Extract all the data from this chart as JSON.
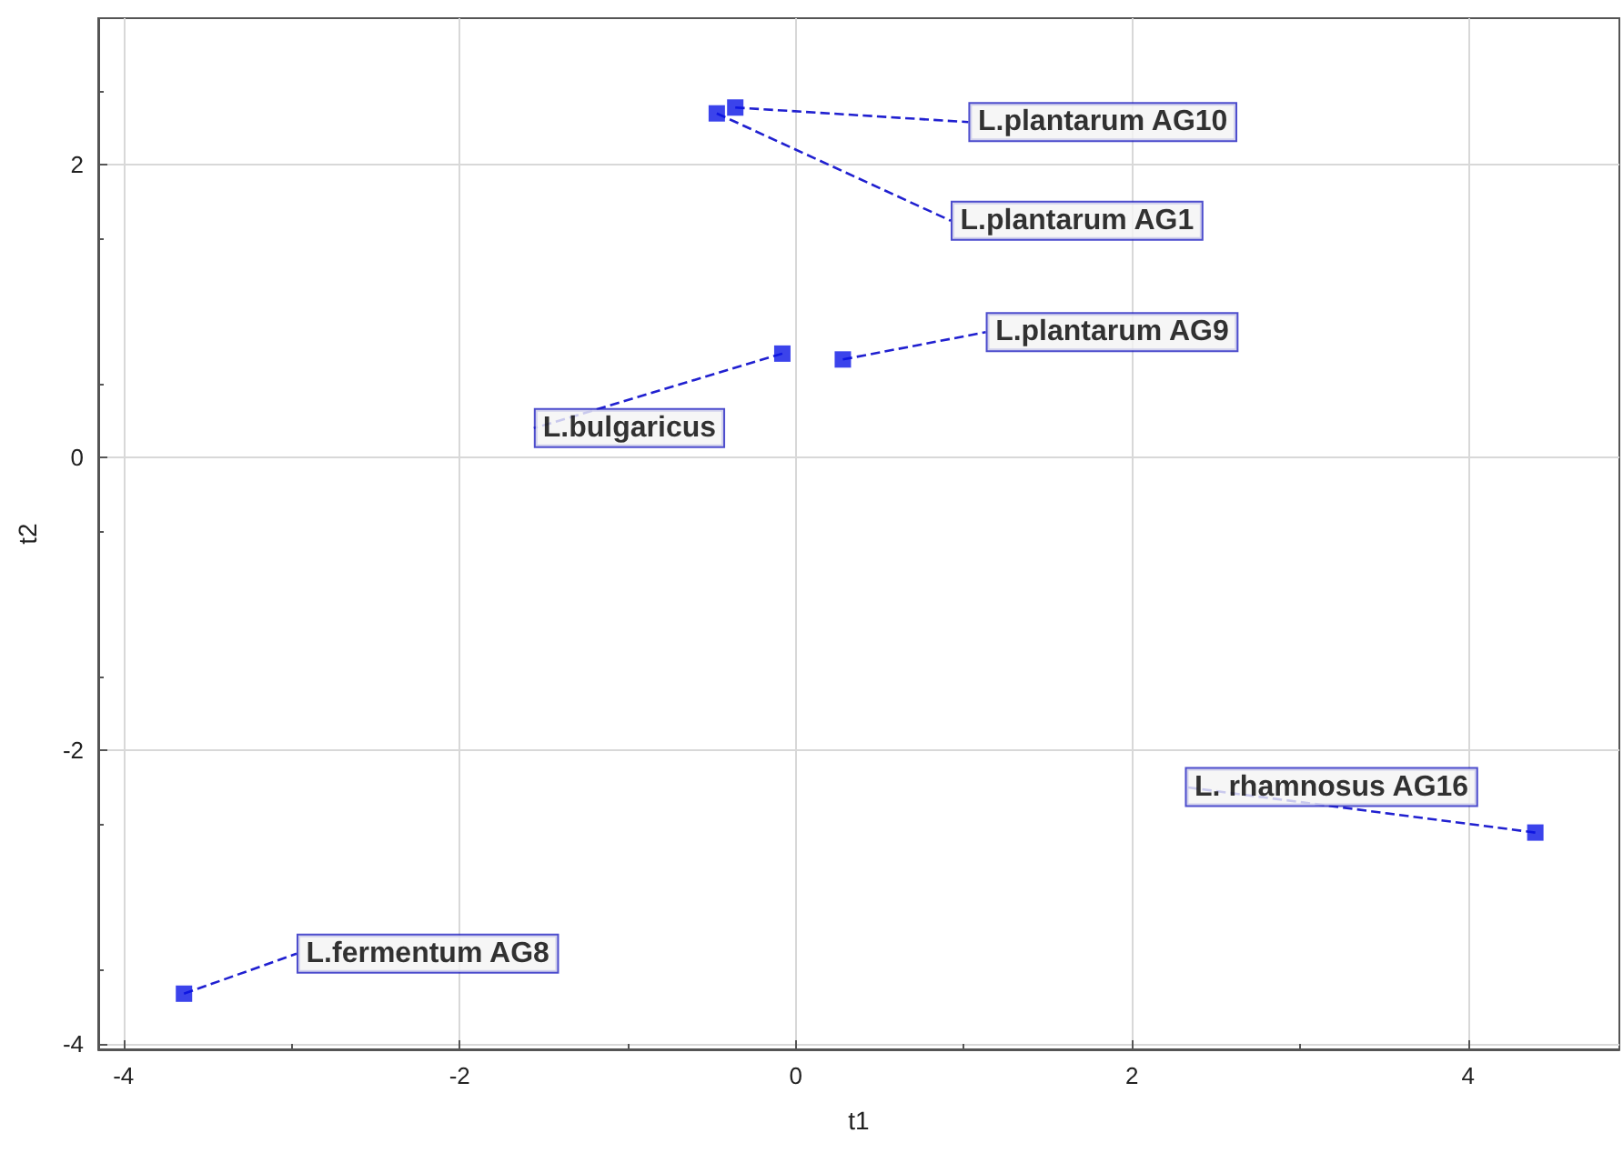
{
  "chart_data": {
    "type": "scatter",
    "xlabel": "t1",
    "ylabel": "t2",
    "x": [
      -0.36,
      -0.47,
      0.28,
      -0.08,
      4.4,
      -3.64
    ],
    "series": [
      {
        "color": "#0a14e6",
        "values": [
          2.39,
          2.35,
          0.67,
          0.71,
          -2.56,
          -3.66
        ]
      }
    ],
    "xlim": [
      -4.15,
      4.9
    ],
    "ylim": [
      -4.04,
      3.0
    ],
    "xticks": [
      -4,
      -2,
      0,
      2,
      4
    ],
    "yticks": [
      -4,
      -2,
      0,
      2
    ],
    "grid": true,
    "marker": "square",
    "annotations": [
      {
        "text": "L.plantarum AG10",
        "x": -0.36,
        "y": 2.39
      },
      {
        "text": "L.plantarum AG1",
        "x": -0.47,
        "y": 2.35
      },
      {
        "text": "L.plantarum AG9",
        "x": 0.28,
        "y": 0.67
      },
      {
        "text": "L.bulgaricus",
        "x": -0.08,
        "y": 0.71
      },
      {
        "text": "L. rhamnosus AG16",
        "x": 4.4,
        "y": -2.56
      },
      {
        "text": "L.fermentum AG8",
        "x": -3.64,
        "y": -3.66
      }
    ]
  }
}
